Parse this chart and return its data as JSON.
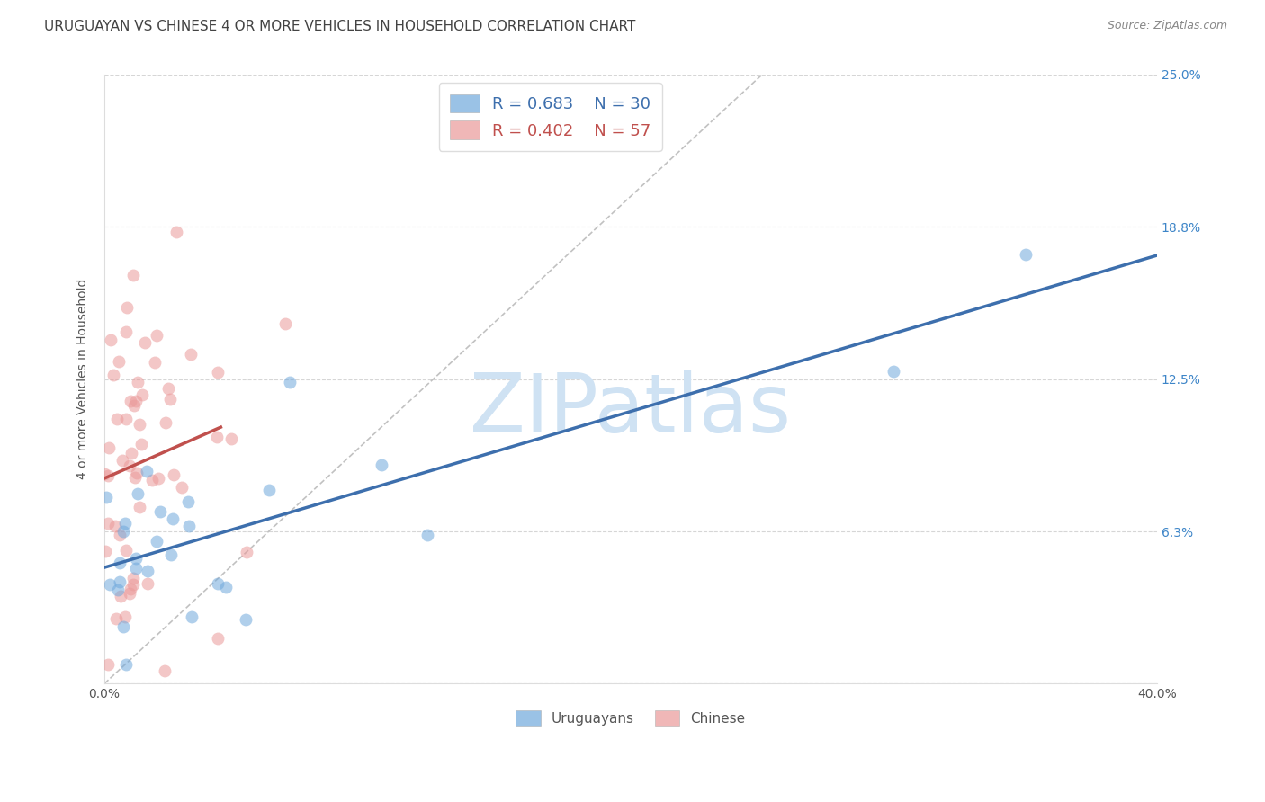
{
  "title": "URUGUAYAN VS CHINESE 4 OR MORE VEHICLES IN HOUSEHOLD CORRELATION CHART",
  "source": "Source: ZipAtlas.com",
  "ylabel": "4 or more Vehicles in Household",
  "ylim": [
    0.0,
    25.0
  ],
  "xlim": [
    0.0,
    40.0
  ],
  "yticks": [
    0.0,
    6.25,
    12.5,
    18.75,
    25.0
  ],
  "ytick_labels": [
    "",
    "6.3%",
    "12.5%",
    "18.8%",
    "25.0%"
  ],
  "xticks": [
    0.0,
    5.0,
    10.0,
    15.0,
    20.0,
    25.0,
    30.0,
    35.0,
    40.0
  ],
  "xtick_labels": [
    "0.0%",
    "",
    "",
    "",
    "",
    "",
    "",
    "",
    "40.0%"
  ],
  "blue_color": "#6fa8dc",
  "blue_line_color": "#3d6fad",
  "pink_color": "#ea9999",
  "pink_line_color": "#c0504d",
  "blue_R": 0.683,
  "blue_N": 30,
  "pink_R": 0.402,
  "pink_N": 57,
  "watermark": "ZIPatlas",
  "background_color": "#ffffff",
  "grid_color": "#cccccc",
  "title_color": "#434343",
  "source_color": "#888888",
  "ytick_color": "#3d85c8",
  "xtick_color": "#555555",
  "title_fontsize": 11,
  "label_fontsize": 10,
  "tick_fontsize": 10,
  "legend_fontsize": 13,
  "watermark_fontsize": 65,
  "watermark_color": "#cfe2f3"
}
